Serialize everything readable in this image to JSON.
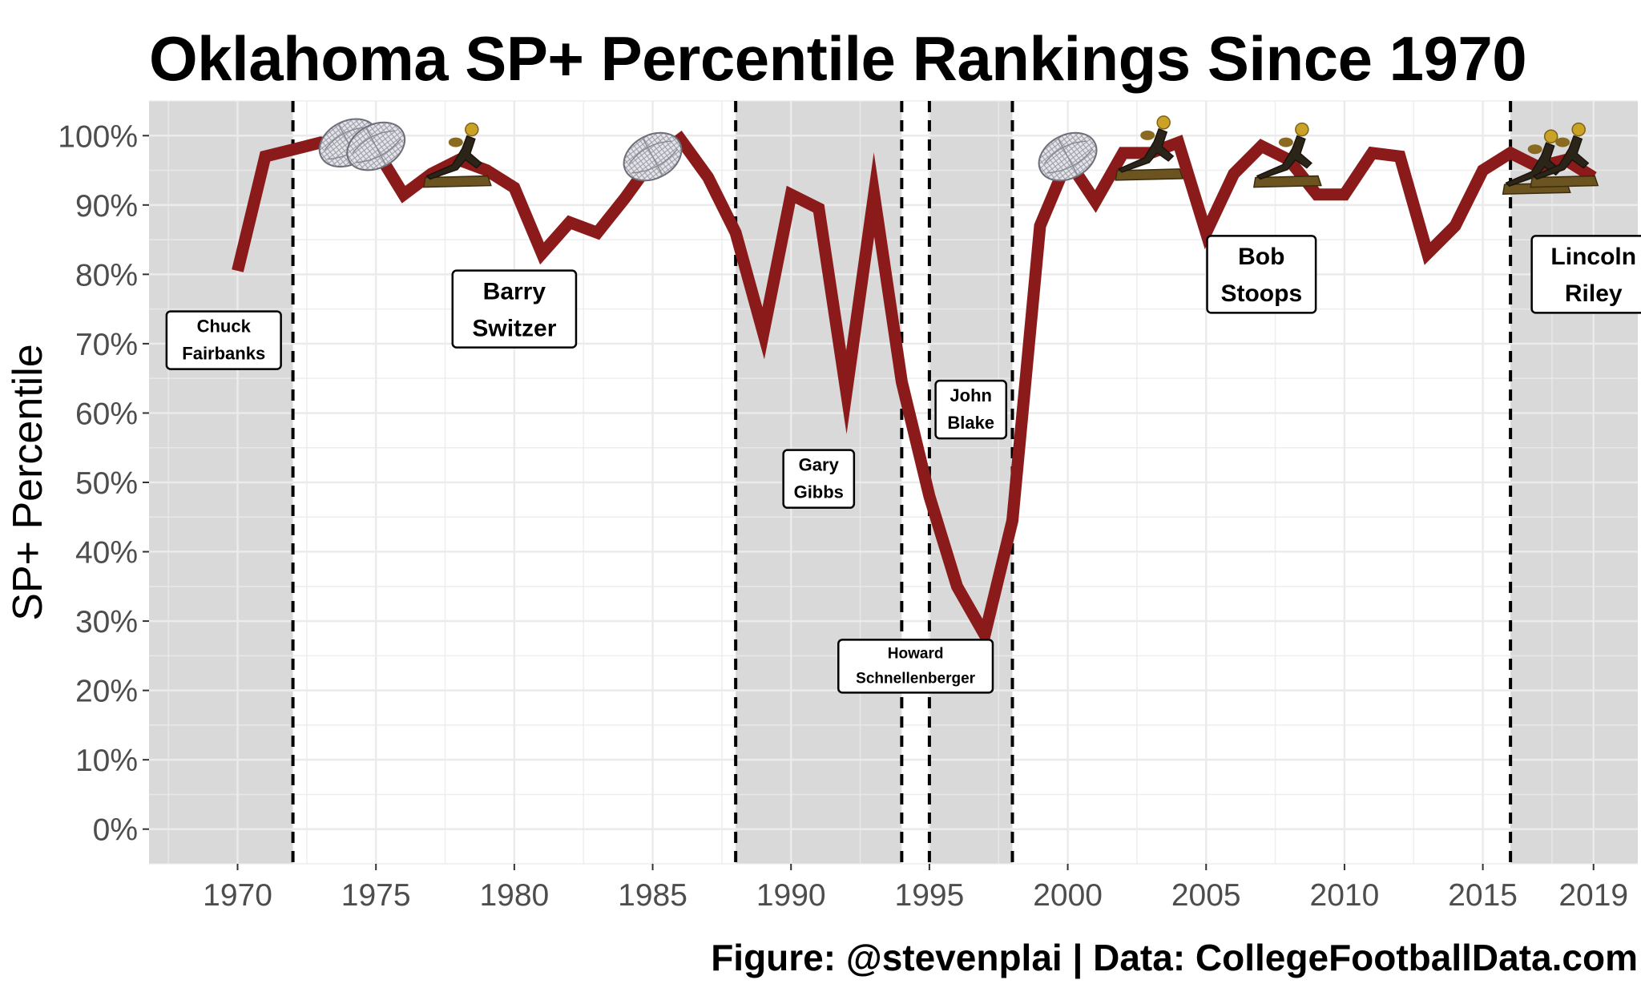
{
  "title": "Oklahoma SP+ Percentile Rankings Since 1970",
  "caption": "Figure: @stevenplai | Data: CollegeFootballData.com",
  "colors": {
    "line": "#8b1a1a",
    "panel": "#ffffff",
    "shade": "#d9d9d9",
    "grid": "#ebebeb"
  },
  "chart_data": {
    "type": "line",
    "ylabel": "SP+ Percentile",
    "ylim": [
      -5,
      105
    ],
    "xlim": [
      1966.8,
      1971.2
    ],
    "yticks": [
      0,
      10,
      20,
      30,
      40,
      50,
      60,
      70,
      80,
      90,
      100
    ],
    "ytick_labels": [
      "0%",
      "10%",
      "20%",
      "30%",
      "40%",
      "50%",
      "60%",
      "70%",
      "80%",
      "90%",
      "100%"
    ],
    "xticks": [
      1970,
      1975,
      1980,
      1985,
      1990,
      1995,
      2000,
      2005,
      2010,
      2015,
      2019
    ],
    "xtick_labels": [
      "1970",
      "1975",
      "1980",
      "1985",
      "1990",
      "1995",
      "2000",
      "2005",
      "2010",
      "2015",
      "2019"
    ],
    "grid": true,
    "series": [
      {
        "x": [
          1970,
          1971,
          1972,
          1973,
          1974,
          1975,
          1976,
          1977,
          1978,
          1979,
          1980,
          1981,
          1982,
          1983,
          1984,
          1985,
          1986,
          1987,
          1988,
          1989,
          1990,
          1991,
          1992,
          1993,
          1994,
          1995,
          1996,
          1997,
          1998,
          1999,
          2000,
          2001,
          2002,
          2003,
          2004,
          2005,
          2006,
          2007,
          2008,
          2009,
          2010,
          2011,
          2012,
          2013,
          2014,
          2015,
          2016,
          2017,
          2018,
          2019
        ],
        "values": [
          80.5,
          97,
          98,
          99,
          98.5,
          98,
          91.5,
          94.5,
          96.5,
          95,
          92.5,
          83,
          87.5,
          86,
          91,
          96.5,
          99.5,
          94,
          86,
          71.5,
          91.5,
          89.5,
          63,
          91.5,
          64.5,
          48,
          35,
          28,
          44.5,
          87,
          96.5,
          90.5,
          97.5,
          97.5,
          99,
          86,
          94.5,
          98.5,
          96.5,
          91.5,
          91.5,
          97.5,
          97,
          83,
          87,
          95,
          97.5,
          95.5,
          96.5,
          94
        ]
      }
    ],
    "coach_eras": [
      {
        "start": 1966.8,
        "end": 1972,
        "shaded": true
      },
      {
        "start": 1972,
        "end": 1988,
        "shaded": false
      },
      {
        "start": 1988,
        "end": 1994,
        "shaded": true
      },
      {
        "start": 1994,
        "end": 1995,
        "shaded": false
      },
      {
        "start": 1995,
        "end": 1998,
        "shaded": true
      },
      {
        "start": 1998,
        "end": 2016,
        "shaded": false
      },
      {
        "start": 2016,
        "end": 2020.6,
        "shaded": true
      }
    ],
    "era_boundaries": [
      1972,
      1988,
      1994,
      1995,
      1998,
      2016
    ],
    "coaches": [
      {
        "label": [
          "Chuck",
          "Fairbanks"
        ],
        "x": 1969.5,
        "y": 70.5,
        "size": "small"
      },
      {
        "label": [
          "Barry",
          "Switzer"
        ],
        "x": 1980,
        "y": 75,
        "size": "large"
      },
      {
        "label": [
          "Gary",
          "Gibbs"
        ],
        "x": 1991,
        "y": 50.5,
        "size": "small"
      },
      {
        "label": [
          "Howard",
          "Schnellenberger"
        ],
        "x": 1994.5,
        "y": 23.5,
        "size": "xsmall"
      },
      {
        "label": [
          "John",
          "Blake"
        ],
        "x": 1996.5,
        "y": 60.5,
        "size": "small"
      },
      {
        "label": [
          "Bob",
          "Stoops"
        ],
        "x": 2007,
        "y": 80,
        "size": "large"
      },
      {
        "label": [
          "Lincoln",
          "Riley"
        ],
        "x": 2019,
        "y": 80,
        "size": "large"
      }
    ],
    "championships": [
      1974,
      1975,
      1985,
      2000
    ],
    "heisman_winners": [
      1978,
      2003,
      2008,
      2017,
      2018
    ]
  }
}
